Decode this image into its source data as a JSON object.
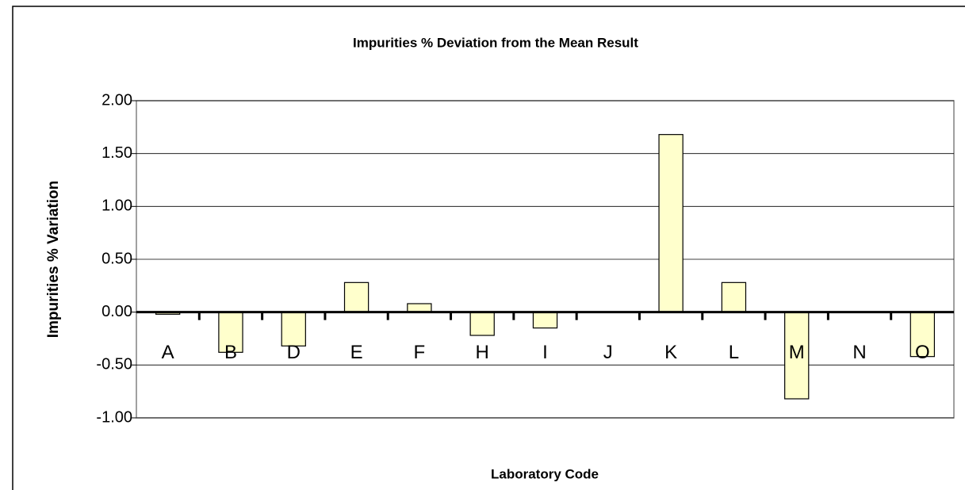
{
  "chart_data": {
    "type": "bar",
    "title": "Impurities % Deviation from the Mean Result",
    "x_label": "Laboratory Code",
    "y_label": "Impurities % Variation",
    "categories": [
      "A",
      "B",
      "D",
      "E",
      "F",
      "H",
      "I",
      "J",
      "K",
      "L",
      "M",
      "N",
      "O"
    ],
    "values": [
      -0.02,
      -0.38,
      -0.32,
      0.28,
      0.08,
      -0.22,
      -0.15,
      0,
      1.68,
      0.28,
      -0.82,
      0,
      -0.42
    ],
    "color": "#ffffcc",
    "ylim": [
      -1,
      2
    ],
    "yticks": [
      {
        "value": -1,
        "label": "-1.00"
      },
      {
        "value": -0.5,
        "label": "-0.50"
      },
      {
        "value": 0,
        "label": "0.00"
      },
      {
        "value": 0.5,
        "label": "0.50"
      },
      {
        "value": 1,
        "label": "1.00"
      },
      {
        "value": 1.5,
        "label": "1.50"
      },
      {
        "value": 2,
        "label": "2.00"
      }
    ],
    "grid": true
  }
}
